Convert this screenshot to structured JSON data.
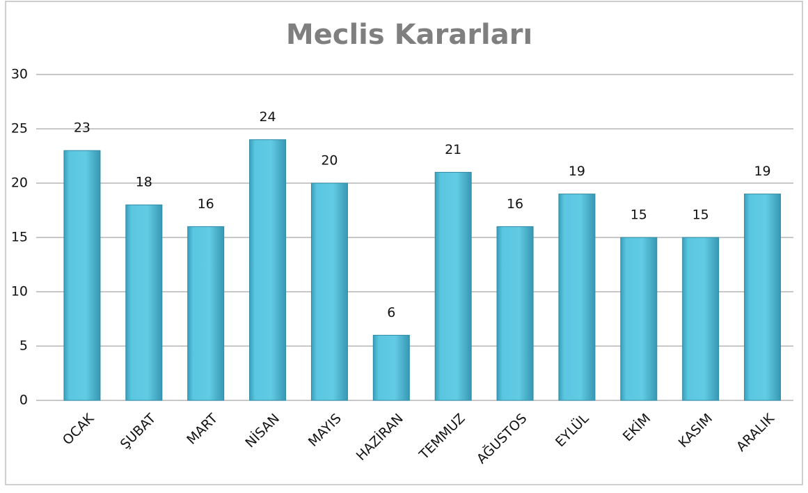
{
  "chart_data": {
    "type": "bar",
    "title": "Meclis Kararları",
    "categories": [
      "OCAK",
      "ŞUBAT",
      "MART",
      "NİSAN",
      "MAYIS",
      "HAZİRAN",
      "TEMMUZ",
      "AĞUSTOS",
      "EYLÜL",
      "EKİM",
      "KASIM",
      "ARALIK"
    ],
    "values": [
      23,
      18,
      16,
      24,
      20,
      6,
      21,
      16,
      19,
      15,
      15,
      19
    ],
    "color": "#4fbdd8",
    "ylim": [
      0,
      30
    ],
    "yticks": [
      0,
      5,
      10,
      15,
      20,
      25,
      30
    ],
    "grid": true
  }
}
